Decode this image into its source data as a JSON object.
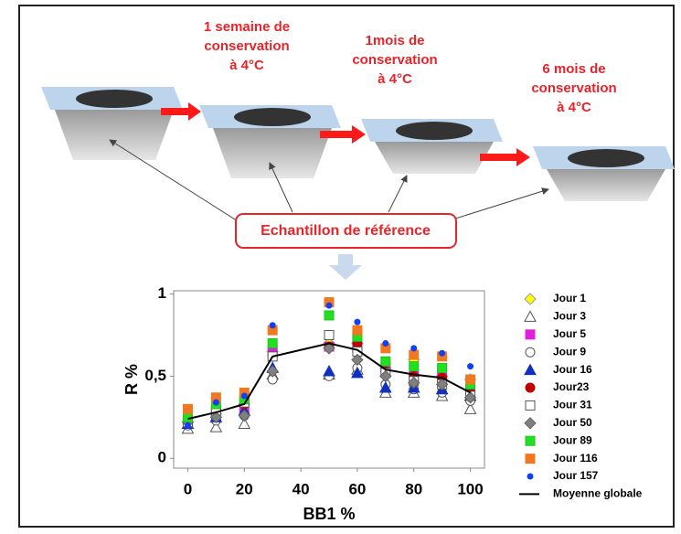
{
  "diagram": {
    "step1": [
      "1 semaine de",
      "conservation",
      "à 4°C"
    ],
    "step2": [
      "1mois de",
      "conservation",
      "à 4°C"
    ],
    "step3": [
      "6 mois de",
      "conservation",
      "à 4°C"
    ],
    "reference": "Echantillon de référence"
  },
  "chart_data": {
    "type": "scatter",
    "xlabel": "BB1 %",
    "ylabel": "R %",
    "xlim": [
      -5,
      105
    ],
    "ylim": [
      -0.06,
      1.02
    ],
    "xticks": [
      0,
      20,
      40,
      60,
      80,
      100
    ],
    "yticks": [
      0,
      {
        "value": 0.5,
        "label": "0,5"
      },
      1
    ],
    "x": [
      0,
      10,
      20,
      30,
      50,
      60,
      70,
      80,
      90,
      100
    ],
    "series": [
      {
        "name": "Jour 1",
        "marker": "diamond",
        "color": "#ffff00",
        "edgecolor": "#999999",
        "values": [
          0.22,
          0.27,
          0.33,
          0.65,
          0.7,
          0.7,
          0.55,
          0.6,
          0.5,
          0.48
        ]
      },
      {
        "name": "Jour 3",
        "marker": "triangle",
        "color": "#ffffff",
        "edgecolor": "#555555",
        "values": [
          0.18,
          0.19,
          0.21,
          0.51,
          0.51,
          0.54,
          0.4,
          0.4,
          0.38,
          0.3
        ]
      },
      {
        "name": "Jour 5",
        "marker": "square",
        "color": "#e020e0",
        "edgecolor": "#e020e0",
        "values": [
          0.22,
          0.28,
          0.3,
          0.65,
          0.68,
          0.68,
          0.55,
          0.5,
          0.5,
          0.42
        ]
      },
      {
        "name": "Jour 9",
        "marker": "circle",
        "color": "#ffffff",
        "edgecolor": "#555555",
        "values": [
          0.2,
          0.23,
          0.26,
          0.48,
          0.5,
          0.55,
          0.45,
          0.42,
          0.4,
          0.35
        ]
      },
      {
        "name": "Jour 16",
        "marker": "triangle",
        "color": "#1030c0",
        "edgecolor": "#1030c0",
        "values": [
          0.21,
          0.25,
          0.29,
          0.55,
          0.53,
          0.52,
          0.43,
          0.43,
          0.42,
          0.38
        ]
      },
      {
        "name": "Jour23",
        "marker": "circle",
        "color": "#c00000",
        "edgecolor": "#c00000",
        "values": [
          0.24,
          0.3,
          0.33,
          0.62,
          0.68,
          0.7,
          0.53,
          0.5,
          0.49,
          0.4
        ]
      },
      {
        "name": "Jour 31",
        "marker": "square",
        "color": "#ffffff",
        "edgecolor": "#555555",
        "values": [
          0.22,
          0.29,
          0.34,
          0.62,
          0.75,
          0.65,
          0.52,
          0.47,
          0.45,
          0.38
        ]
      },
      {
        "name": "Jour 50",
        "marker": "diamond",
        "color": "#808080",
        "edgecolor": "#606060",
        "values": [
          0.22,
          0.25,
          0.26,
          0.53,
          0.67,
          0.6,
          0.5,
          0.46,
          0.45,
          0.37
        ]
      },
      {
        "name": "Jour 89",
        "marker": "square",
        "color": "#20e020",
        "edgecolor": "#20c020",
        "values": [
          0.25,
          0.33,
          0.36,
          0.7,
          0.87,
          0.74,
          0.59,
          0.56,
          0.55,
          0.45
        ]
      },
      {
        "name": "Jour 116",
        "marker": "square",
        "color": "#f07820",
        "edgecolor": "#f07820",
        "values": [
          0.3,
          0.37,
          0.4,
          0.78,
          0.95,
          0.78,
          0.67,
          0.63,
          0.62,
          0.48
        ]
      },
      {
        "name": "Jour 157",
        "marker": "dot",
        "color": "#1040f0",
        "edgecolor": "#1040f0",
        "values": [
          0.2,
          0.34,
          0.38,
          0.81,
          0.93,
          0.83,
          0.7,
          0.67,
          0.64,
          0.56
        ]
      },
      {
        "name": "Moyenne globale",
        "marker": "line",
        "color": "#000000",
        "edgecolor": "#000000",
        "values": [
          0.24,
          0.28,
          0.33,
          0.62,
          0.7,
          0.66,
          0.54,
          0.51,
          0.49,
          0.4
        ]
      }
    ]
  }
}
